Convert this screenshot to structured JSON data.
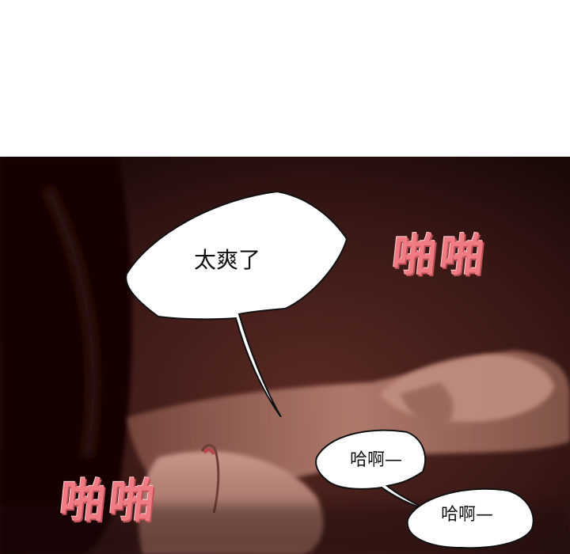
{
  "panel": {
    "speech_main": "太爽了",
    "speech_small_1": "哈啊—",
    "speech_small_2": "哈啊—",
    "sfx_top": "啪啪",
    "sfx_bottom": "啪啪"
  },
  "colors": {
    "background_top": "#ffffff",
    "panel_dark": "#2a1110",
    "sfx": "#f07b83",
    "bubble_fill": "#ffffff"
  }
}
